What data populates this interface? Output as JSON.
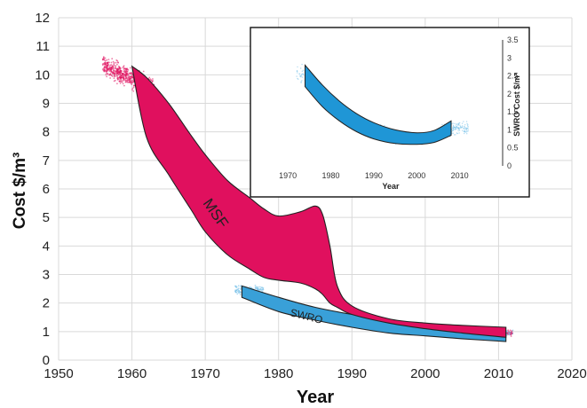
{
  "chart_data": [
    {
      "type": "area",
      "xlabel": "Year",
      "ylabel": "Cost $/m³",
      "xlim": [
        1950,
        2020
      ],
      "ylim": [
        0,
        12
      ],
      "xticks": [
        1950,
        1960,
        1970,
        1980,
        1990,
        2000,
        2010,
        2020
      ],
      "yticks": [
        0,
        1,
        2,
        3,
        4,
        5,
        6,
        7,
        8,
        9,
        10,
        11,
        12
      ],
      "grid": true,
      "series": [
        {
          "name": "MSF",
          "color": "#e0105e",
          "x": [
            1960,
            1962,
            1965,
            1968,
            1970,
            1973,
            1976,
            1978,
            1980,
            1983,
            1985,
            1986,
            1987,
            1988,
            1990,
            1995,
            2000,
            2005,
            2011
          ],
          "lower": [
            10.3,
            7.8,
            6.5,
            5.3,
            4.5,
            3.7,
            3.2,
            2.9,
            2.8,
            2.7,
            2.5,
            2.3,
            2.0,
            1.85,
            1.6,
            1.3,
            1.1,
            0.95,
            0.8
          ],
          "upper": [
            10.3,
            9.9,
            9.0,
            7.9,
            7.2,
            6.3,
            5.7,
            5.3,
            5.05,
            5.2,
            5.4,
            5.1,
            4.0,
            2.6,
            1.9,
            1.45,
            1.3,
            1.22,
            1.15
          ]
        },
        {
          "name": "SWRO",
          "color": "#39a0d8",
          "x": [
            1975,
            1980,
            1985,
            1990,
            1995,
            2000,
            2005,
            2011
          ],
          "lower": [
            2.2,
            1.7,
            1.4,
            1.15,
            0.95,
            0.85,
            0.75,
            0.65
          ],
          "upper": [
            2.6,
            2.2,
            1.85,
            1.6,
            1.4,
            1.25,
            1.1,
            0.95
          ]
        }
      ]
    },
    {
      "type": "area",
      "xlabel": "Year",
      "ylabel": "SWRO Cost $/m³",
      "xlim": [
        1965,
        2020
      ],
      "ylim": [
        0,
        3.5
      ],
      "xticks": [
        1970,
        1980,
        1990,
        2000,
        2010
      ],
      "yticks": [
        0,
        0.5,
        1,
        1.5,
        2,
        2.5,
        3,
        3.5
      ],
      "y_axis_side": "right",
      "series": [
        {
          "name": "SWRO",
          "color": "#1f96d6",
          "x": [
            1974,
            1978,
            1982,
            1986,
            1990,
            1995,
            2000,
            2004,
            2008
          ],
          "lower": [
            2.2,
            1.65,
            1.25,
            0.95,
            0.75,
            0.62,
            0.6,
            0.65,
            0.85
          ],
          "upper": [
            2.8,
            2.25,
            1.8,
            1.45,
            1.2,
            1.0,
            0.92,
            0.98,
            1.25
          ]
        }
      ]
    }
  ]
}
